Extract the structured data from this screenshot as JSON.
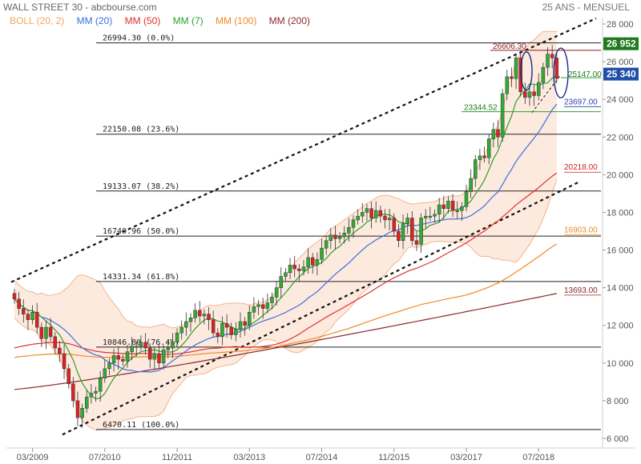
{
  "header": {
    "title": "WALL STREET 30 - abcbourse.com",
    "period": "25 ANS - MENSUEL",
    "legend": [
      {
        "label": "BOLL (20, 2)",
        "color": "#f4a460"
      },
      {
        "label": "MM (20)",
        "color": "#3b6fe0"
      },
      {
        "label": "MM (50)",
        "color": "#e03030"
      },
      {
        "label": "MM (7)",
        "color": "#2e9e2e"
      },
      {
        "label": "MM (100)",
        "color": "#f08a24"
      },
      {
        "label": "MM (200)",
        "color": "#8b2a2a"
      }
    ]
  },
  "chart_data": {
    "type": "candlestick",
    "title": "WALL STREET 30 - abcbourse.com",
    "period": "25 ANS - MENSUEL",
    "ylim": [
      6000,
      28000
    ],
    "y_ticks": [
      "6 000",
      "8 000",
      "10 000",
      "12 000",
      "14 000",
      "16 000",
      "18 000",
      "20 000",
      "22 000",
      "24 000",
      "26 000",
      "28 000"
    ],
    "y_tick_values": [
      6000,
      8000,
      10000,
      12000,
      14000,
      16000,
      18000,
      20000,
      22000,
      24000,
      26000,
      28000
    ],
    "x_ticks": [
      "03/2009",
      "07/2010",
      "11/2011",
      "03/2013",
      "07/2014",
      "11/2015",
      "03/2017",
      "07/2018"
    ],
    "x_tick_index": [
      4,
      20,
      36,
      52,
      68,
      84,
      100,
      116
    ],
    "grid": false,
    "candles_close": [
      13400,
      12900,
      12600,
      12300,
      12700,
      11900,
      11300,
      11900,
      11400,
      10800,
      10500,
      9700,
      8900,
      8000,
      7100,
      7600,
      8200,
      8400,
      8500,
      9200,
      9700,
      10000,
      10400,
      10200,
      10100,
      10600,
      10900,
      10900,
      11100,
      10800,
      10200,
      10500,
      10000,
      10700,
      10800,
      11100,
      11600,
      11900,
      12200,
      12400,
      12800,
      12500,
      12600,
      12300,
      11600,
      11400,
      12100,
      11900,
      11500,
      11800,
      12200,
      12000,
      12700,
      13000,
      13100,
      12900,
      13200,
      13500,
      14000,
      14600,
      14800,
      15200,
      15000,
      14900,
      15100,
      15600,
      15200,
      15500,
      16100,
      16500,
      16800,
      16600,
      16700,
      16900,
      17200,
      17600,
      17800,
      18000,
      18200,
      17700,
      18100,
      17800,
      17600,
      17700,
      17000,
      16500,
      17400,
      17700,
      16500,
      16300,
      17700,
      17800,
      17800,
      17900,
      18400,
      18200,
      18600,
      18100,
      18100,
      18300,
      19100,
      19800,
      20800,
      21000,
      20900,
      21900,
      22400,
      22000,
      24300,
      25200,
      25100,
      26200,
      24400,
      24100,
      24400,
      24200,
      24900,
      25700,
      26400,
      26200,
      25100
    ],
    "moving_averages": [
      {
        "name": "MM (20)",
        "end_value": 23697.0
      },
      {
        "name": "MM (50)",
        "end_value": 20218.0
      },
      {
        "name": "MM (100)",
        "end_value": 16903.0
      },
      {
        "name": "MM (200)",
        "end_value": 13693.0
      }
    ],
    "fibonacci_levels": [
      {
        "value": 26994.3,
        "label": "26994.30 (0.0%)"
      },
      {
        "value": 22150.08,
        "label": "22150.08 (23.6%)"
      },
      {
        "value": 19133.07,
        "label": "19133.07 (38.2%)"
      },
      {
        "value": 16740.96,
        "label": "16740.96 (50.0%)"
      },
      {
        "value": 14331.34,
        "label": "14331.34 (61.8%)"
      },
      {
        "value": 10846.8,
        "label": "10846.80 (76.4%)"
      },
      {
        "value": 6470.11,
        "label": "6470.11 (100.0%)"
      }
    ],
    "annotations": [
      {
        "text": "26606.30",
        "value": 26606.3
      },
      {
        "text": "25147.00",
        "value": 25147.0
      },
      {
        "text": "23344.52",
        "value": 23344.52
      }
    ],
    "price_tags": [
      {
        "text": "26 952",
        "value": 26952,
        "color": "#1f7a1f"
      },
      {
        "text": "25 340",
        "value": 25340,
        "color": "#1f4fa8"
      }
    ]
  },
  "colors": {
    "up": "#33aa33",
    "down": "#dd2222",
    "bollinger_fill": "#fde6d8",
    "bollinger_edge": "#f4b48a",
    "fibo_line": "#222222",
    "trend_line": "#111111",
    "ellipse": "#1a2a8a"
  }
}
